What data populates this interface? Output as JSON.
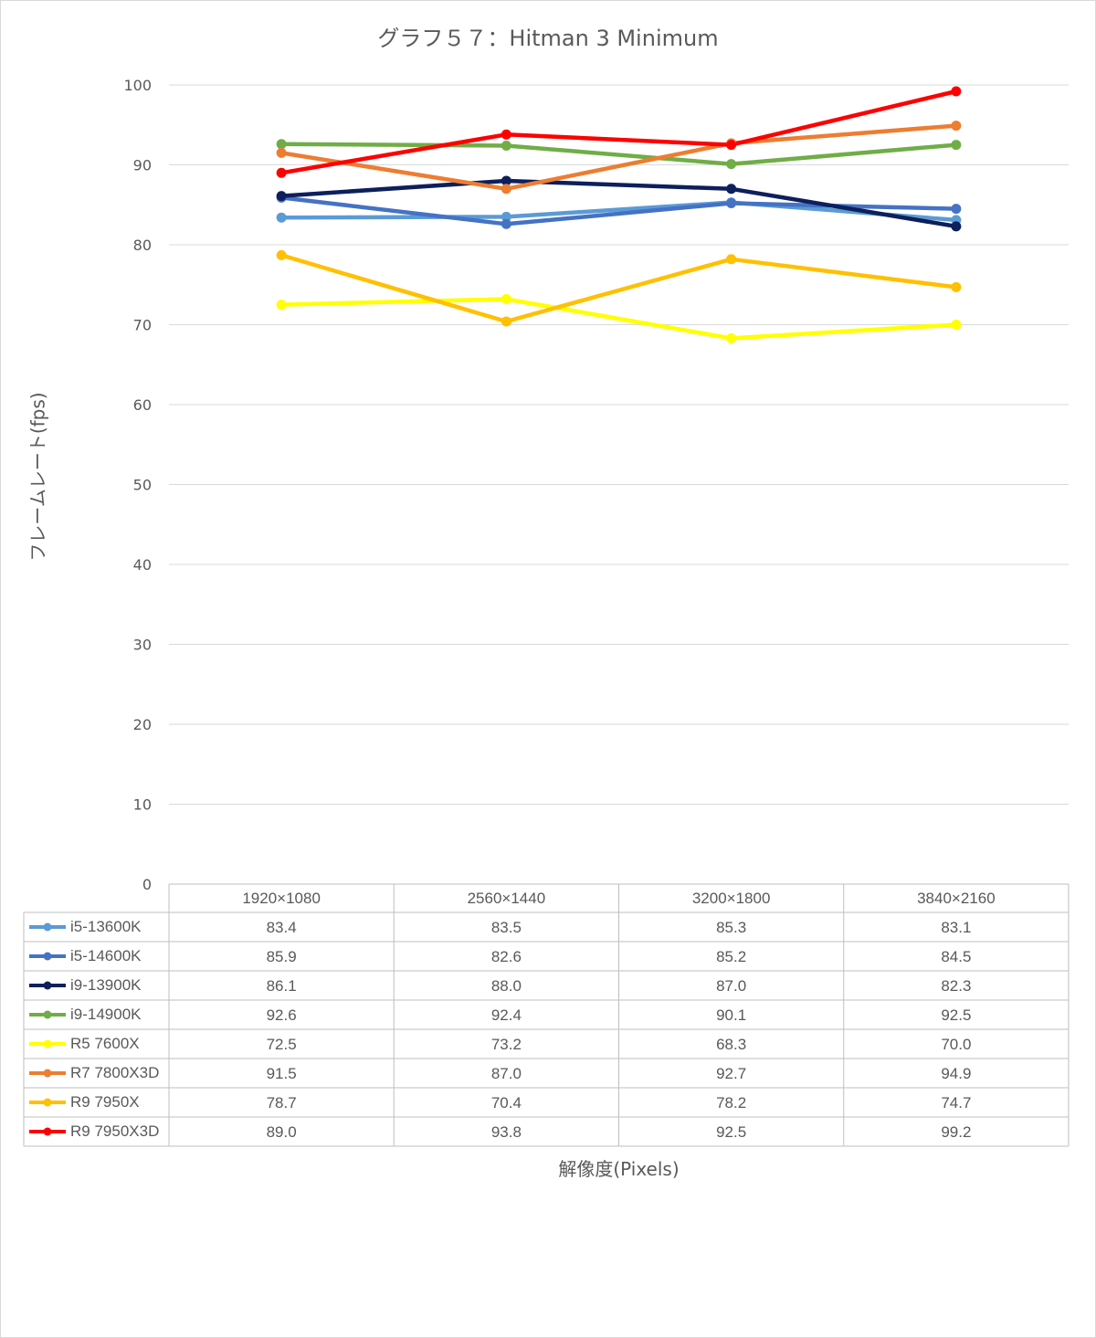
{
  "chart_data": {
    "type": "line",
    "title": "グラフ５７：Hitman 3 Minimum",
    "xlabel": "解像度(Pixels)",
    "ylabel": "フレームレート(fps)",
    "ylim": [
      0,
      100
    ],
    "yticks": [
      0,
      10,
      20,
      30,
      40,
      50,
      60,
      70,
      80,
      90,
      100
    ],
    "grid": true,
    "legend": "data-table",
    "categories": [
      "1920×1080",
      "2560×1440",
      "3200×1800",
      "3840×2160"
    ],
    "series": [
      {
        "name": "i5-13600K",
        "color": "#5b9bd5",
        "values": [
          83.4,
          83.5,
          85.3,
          83.1
        ]
      },
      {
        "name": "i5-14600K",
        "color": "#4472c4",
        "values": [
          85.9,
          82.6,
          85.2,
          84.5
        ]
      },
      {
        "name": "i9-13900K",
        "color": "#0d1f5c",
        "values": [
          86.1,
          88.0,
          87.0,
          82.3
        ]
      },
      {
        "name": "i9-14900K",
        "color": "#70ad47",
        "values": [
          92.6,
          92.4,
          90.1,
          92.5
        ]
      },
      {
        "name": "R5 7600X",
        "color": "#ffff00",
        "values": [
          72.5,
          73.2,
          68.3,
          70.0
        ]
      },
      {
        "name": "R7 7800X3D",
        "color": "#ed7d31",
        "values": [
          91.5,
          87.0,
          92.7,
          94.9
        ]
      },
      {
        "name": "R9 7950X",
        "color": "#ffc000",
        "values": [
          78.7,
          70.4,
          78.2,
          74.7
        ]
      },
      {
        "name": "R9 7950X3D",
        "color": "#ff0000",
        "values": [
          89.0,
          93.8,
          92.5,
          99.2
        ]
      }
    ]
  }
}
